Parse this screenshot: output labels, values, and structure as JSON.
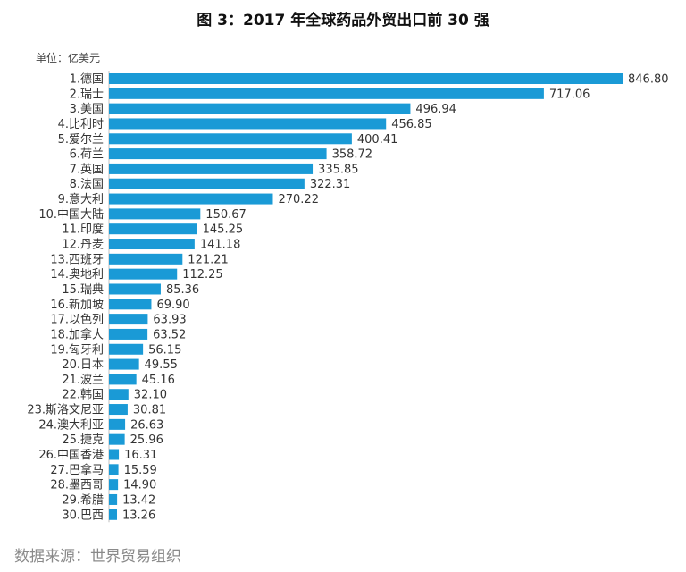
{
  "chart_data": {
    "type": "bar",
    "orientation": "horizontal",
    "title": "图 3：2017 年全球药品外贸出口前 30 强",
    "unit_label": "单位：亿美元",
    "categories": [
      "1.德国",
      "2.瑞士",
      "3.美国",
      "4.比利时",
      "5.爱尔兰",
      "6.荷兰",
      "7.英国",
      "8.法国",
      "9.意大利",
      "10.中国大陆",
      "11.印度",
      "12.丹麦",
      "13.西班牙",
      "14.奥地利",
      "15.瑞典",
      "16.新加坡",
      "17.以色列",
      "18.加拿大",
      "19.匈牙利",
      "20.日本",
      "21.波兰",
      "22.韩国",
      "23.斯洛文尼亚",
      "24.澳大利亚",
      "25.捷克",
      "26.中国香港",
      "27.巴拿马",
      "28.墨西哥",
      "29.希腊",
      "30.巴西"
    ],
    "values": [
      846.8,
      717.06,
      496.94,
      456.85,
      400.41,
      358.72,
      335.85,
      322.31,
      270.22,
      150.67,
      145.25,
      141.18,
      121.21,
      112.25,
      85.36,
      69.9,
      63.93,
      63.52,
      56.15,
      49.55,
      45.16,
      32.1,
      30.81,
      26.63,
      25.96,
      16.31,
      15.59,
      14.9,
      13.42,
      13.26
    ],
    "value_labels": [
      "846.80",
      "717.06",
      "496.94",
      "456.85",
      "400.41",
      "358.72",
      "335.85",
      "322.31",
      "270.22",
      "150.67",
      "145.25",
      "141.18",
      "121.21",
      "112.25",
      "85.36",
      "69.90",
      "63.93",
      "63.52",
      "56.15",
      "49.55",
      "45.16",
      "32.10",
      "30.81",
      "26.63",
      "25.96",
      "16.31",
      "15.59",
      "14.90",
      "13.42",
      "13.26"
    ],
    "bar_color": "#1a9ad6",
    "grid": false,
    "legend": "none"
  },
  "source": "数据来源：世界贸易组织"
}
